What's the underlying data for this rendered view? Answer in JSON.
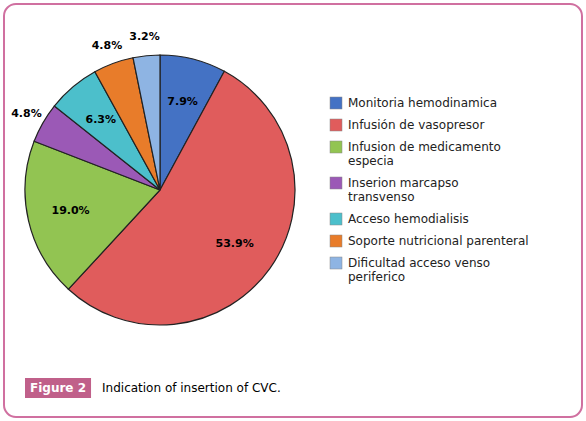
{
  "chart_data": {
    "type": "pie",
    "categories": [
      "Monitoria hemodinamica",
      "Infusión de vasopresor",
      "Infusion de medicamento\nespecia",
      "Inserion marcapso\ntransvenso",
      "Acceso hemodialisis",
      "Soporte nutricional parenteral",
      "Dificultad acceso venso\nperiferico"
    ],
    "values": [
      7.9,
      53.9,
      19.0,
      4.8,
      6.3,
      4.8,
      3.2
    ],
    "value_labels": [
      "7.9%",
      "53.9%",
      "19.0%",
      "4.8%",
      "6.3%",
      "4.8%",
      "3.2%"
    ],
    "colors": [
      "#4472c4",
      "#e05c5c",
      "#92c452",
      "#9b59b6",
      "#4cbfcb",
      "#e87c2a",
      "#8eb4e3"
    ],
    "data_labels": true,
    "legend": "right",
    "annotations": [
      "Figure 2",
      "Indication of insertion of CVC."
    ]
  }
}
